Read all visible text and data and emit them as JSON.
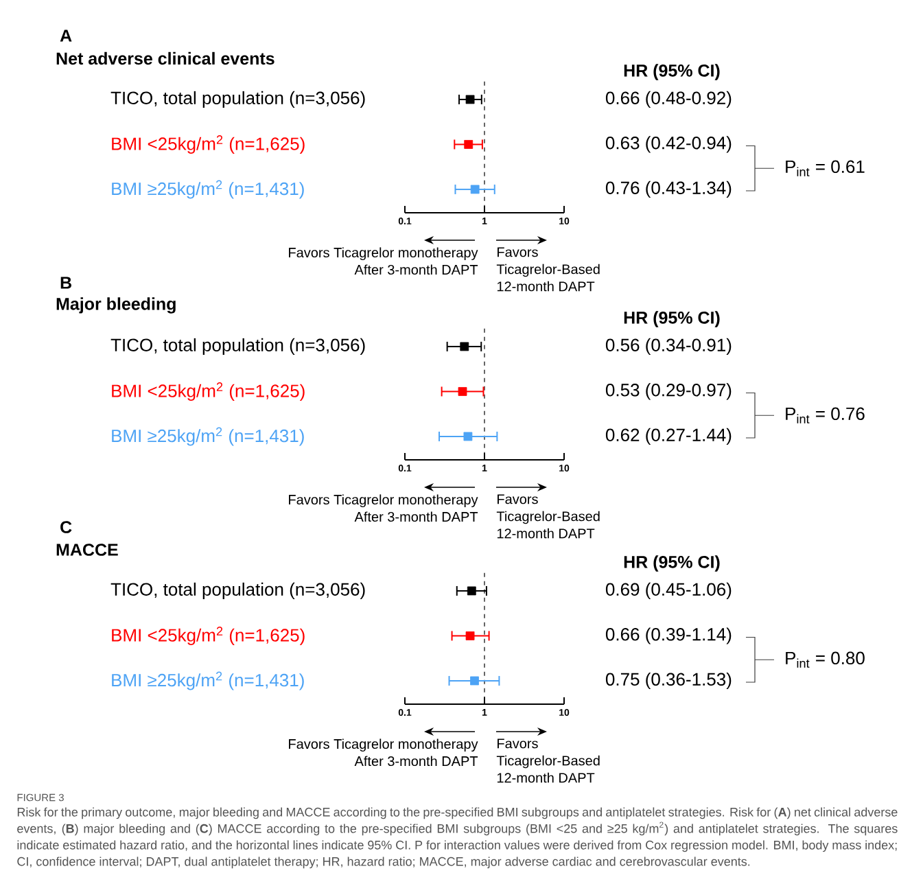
{
  "chart_data": [
    {
      "type": "scatter",
      "orientation": "horizontal",
      "title": "A",
      "subtitle": "Net adverse clinical events",
      "categories": [
        "TICO, total population (n=3,056)",
        "BMI <25kg/m$^{2}$ (n=1,625)",
        "BMI ≥25kg/m$^{2}$ (n=1,431)"
      ],
      "colors": [
        "#000000",
        "#ff0000",
        "#4da3f5"
      ],
      "marker": "square",
      "values": [
        0.66,
        0.63,
        0.76
      ],
      "errors": [
        [
          0.48,
          0.92
        ],
        [
          0.42,
          0.94
        ],
        [
          0.43,
          1.34
        ]
      ],
      "value_labels": [
        "0.66 (0.48-0.92)",
        "0.63 (0.42-0.94)",
        "0.76 (0.43-1.34)"
      ],
      "log": "x",
      "xlim": [
        0.1,
        10
      ],
      "xticks": [
        0.1,
        1,
        10
      ],
      "ref_lines": [
        {
          "axis": "x",
          "value": 1,
          "line_style": "dashed"
        }
      ],
      "annotations": [
        "HR (95% CI)",
        "P$_{int}$ = 0.61",
        "Favors Ticagrelor monotherapy After 3-month DAPT",
        "Favors Ticagrelor-Based 12-month DAPT"
      ]
    },
    {
      "type": "scatter",
      "orientation": "horizontal",
      "title": "B",
      "subtitle": "Major bleeding",
      "categories": [
        "TICO, total population (n=3,056)",
        "BMI <25kg/m$^{2}$ (n=1,625)",
        "BMI ≥25kg/m$^{2}$ (n=1,431)"
      ],
      "colors": [
        "#000000",
        "#ff0000",
        "#4da3f5"
      ],
      "marker": "square",
      "values": [
        0.56,
        0.53,
        0.62
      ],
      "errors": [
        [
          0.34,
          0.91
        ],
        [
          0.29,
          0.97
        ],
        [
          0.27,
          1.44
        ]
      ],
      "value_labels": [
        "0.56 (0.34-0.91)",
        "0.53 (0.29-0.97)",
        "0.62 (0.27-1.44)"
      ],
      "log": "x",
      "xlim": [
        0.1,
        10
      ],
      "xticks": [
        0.1,
        1,
        10
      ],
      "ref_lines": [
        {
          "axis": "x",
          "value": 1,
          "line_style": "dashed"
        }
      ],
      "annotations": [
        "HR (95% CI)",
        "P$_{int}$ = 0.76",
        "Favors Ticagrelor monotherapy After 3-month DAPT",
        "Favors Ticagrelor-Based 12-month DAPT"
      ]
    },
    {
      "type": "scatter",
      "orientation": "horizontal",
      "title": "C",
      "subtitle": "MACCE",
      "categories": [
        "TICO, total population (n=3,056)",
        "BMI <25kg/m$^{2}$ (n=1,625)",
        "BMI ≥25kg/m$^{2}$ (n=1,431)"
      ],
      "colors": [
        "#000000",
        "#ff0000",
        "#4da3f5"
      ],
      "marker": "square",
      "values": [
        0.69,
        0.66,
        0.75
      ],
      "errors": [
        [
          0.45,
          1.06
        ],
        [
          0.39,
          1.14
        ],
        [
          0.36,
          1.53
        ]
      ],
      "value_labels": [
        "0.69 (0.45-1.06)",
        "0.66 (0.39-1.14)",
        "0.75 (0.36-1.53)"
      ],
      "log": "x",
      "xlim": [
        0.1,
        10
      ],
      "xticks": [
        0.1,
        1,
        10
      ],
      "ref_lines": [
        {
          "axis": "x",
          "value": 1,
          "line_style": "dashed"
        }
      ],
      "annotations": [
        "HR (95% CI)",
        "P$_{int}$ = 0.80",
        "Favors Ticagrelor monotherapy After 3-month DAPT",
        "Favors Ticagrelor-Based 12-month DAPT"
      ]
    },
    {
      "type": "other",
      "title": "FIGURE 3",
      "annotations": [
        "Risk for the primary outcome, major bleeding and MACCE according to the pre-specified BMI subgroups and antiplatelet strategies. Risk for (**A**) net clinical adverse events, (**B**) major bleeding and (**C**) MACCE according to the pre-specified BMI subgroups (BMI <25 and ≥25 kg/m$^{2}$) and antiplatelet strategies. The squares indicate estimated hazard ratio, and the horizontal lines indicate 95% CI. P for interaction values were derived from Cox regression model. BMI, body mass index; CI, confidence interval; DAPT, dual antiplatelet therapy; HR, hazard ratio; MACCE, major adverse cardiac and cerebrovascular events."
      ]
    }
  ]
}
